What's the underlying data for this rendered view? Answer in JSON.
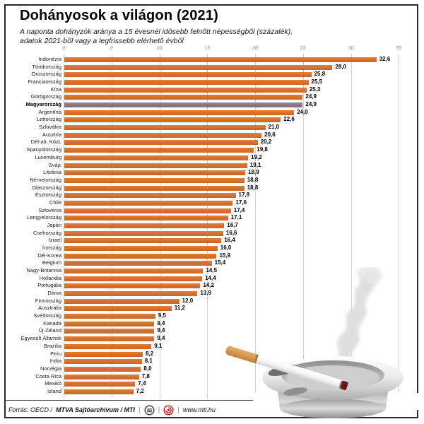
{
  "title": "Dohányosok a világon (2021)",
  "subtitle_line1": "A naponta dohányzók aránya a 15 évesnél idősebb felnőtt népességből (százalék),",
  "subtitle_line2": "adatok 2021-ből vagy a legfrissebb elérhető évből",
  "chart_data": {
    "type": "bar",
    "orientation": "horizontal",
    "title": "Dohányosok a világon (2021)",
    "xlabel": "százalék",
    "ylabel": "",
    "xlim": [
      0,
      35
    ],
    "axis_ticks": [
      0,
      5,
      10,
      15,
      20,
      25,
      30,
      35
    ],
    "grid": true,
    "value_decimal_separator": ",",
    "bar_color": "#D8712D",
    "highlight_color": "#8C7A8A",
    "highlight_category": "Magyarország",
    "categories": [
      "Indonézia",
      "Törökország",
      "Oroszország",
      "Franciaország",
      "Kína",
      "Görögország",
      "Magyarország",
      "Argentína",
      "Lettország",
      "Szlovákia",
      "Ausztria",
      "Dél-afr. Közt.",
      "Spanyolország",
      "Luxemburg",
      "Svájc",
      "Litvánia",
      "Németország",
      "Olaszország",
      "Észtország",
      "Chile",
      "Szlovénia",
      "Lengyelország",
      "Japán",
      "Csehország",
      "Izrael",
      "Írország",
      "Dél-Korea",
      "Belgium",
      "Nagy-Britannia",
      "Hollandia",
      "Portugália",
      "Dánia",
      "Finnország",
      "Ausztrália",
      "Svédország",
      "Kanada",
      "Új-Zéland",
      "Egyesült Államok",
      "Brazília",
      "Peru",
      "India",
      "Norvégia",
      "Costa Rica",
      "Mexikó",
      "Izland"
    ],
    "values": [
      32.6,
      28.0,
      25.8,
      25.5,
      25.3,
      24.9,
      24.9,
      24.0,
      22.6,
      21.0,
      20.6,
      20.2,
      19.8,
      19.2,
      19.1,
      18.9,
      18.8,
      18.8,
      17.9,
      17.6,
      17.4,
      17.1,
      16.7,
      16.6,
      16.4,
      16.0,
      15.9,
      15.4,
      14.5,
      14.4,
      14.2,
      13.9,
      12.0,
      11.2,
      9.5,
      9.4,
      9.4,
      9.4,
      9.1,
      8.2,
      8.1,
      8.0,
      7.8,
      7.4,
      7.2
    ]
  },
  "footer": {
    "source_prefix": "Forrás: OECD /",
    "source_bold": "MTVA Sajtóarchívum / MTI",
    "separator": "|",
    "website": "www.mti.hu"
  },
  "illustration": {
    "name": "cigarette-ashtray",
    "smoke_color": "#dcdcdc",
    "ashtray_color": "#b5b5b5",
    "cigarette_filter_color": "#d99b4e",
    "ember_color": "#6a1414"
  }
}
